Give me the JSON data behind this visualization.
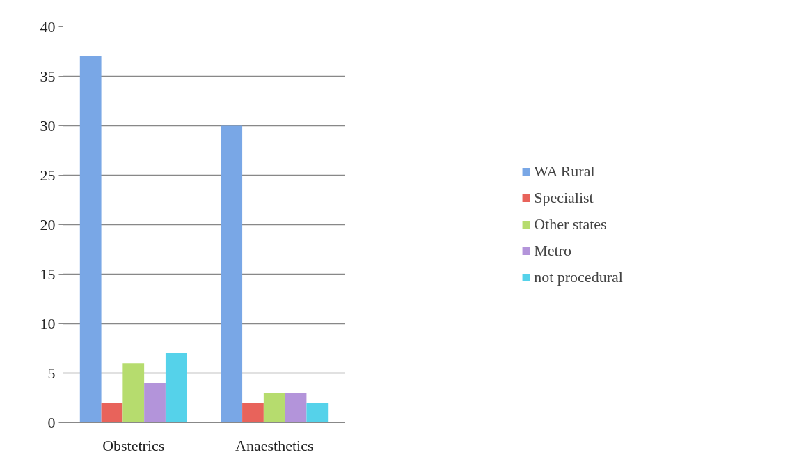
{
  "chart_data": {
    "type": "bar",
    "categories": [
      "Obstetrics",
      "Anaesthetics"
    ],
    "series": [
      {
        "name": "WA Rural",
        "color": "#79a7e6",
        "values": [
          37,
          30
        ]
      },
      {
        "name": "Specialist",
        "color": "#e8635b",
        "values": [
          2,
          2
        ]
      },
      {
        "name": "Other states",
        "color": "#b6dc6e",
        "values": [
          6,
          3
        ]
      },
      {
        "name": "Metro",
        "color": "#b394da",
        "values": [
          4,
          3
        ]
      },
      {
        "name": "not procedural",
        "color": "#55d2ea",
        "values": [
          7,
          2
        ]
      }
    ],
    "ylim": [
      0,
      40
    ],
    "yticks": [
      0,
      5,
      10,
      15,
      20,
      25,
      30,
      35,
      40
    ],
    "grid": "y",
    "legend": "right"
  }
}
